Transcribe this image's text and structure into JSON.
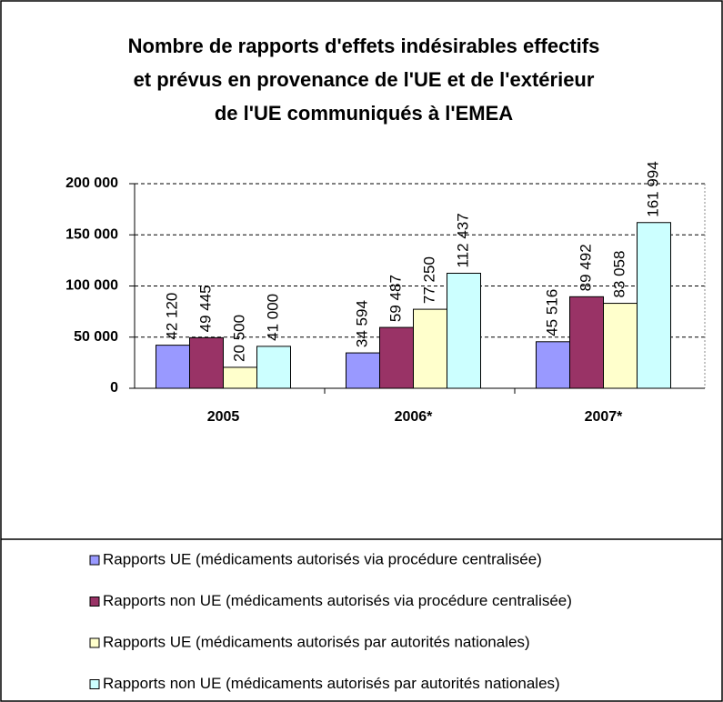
{
  "chart_data": {
    "type": "bar",
    "title": [
      "Nombre de rapports d'effets indésirables effectifs",
      "et prévus en provenance de l'UE et de l'extérieur",
      "de l'UE communiqués à l'EMEA"
    ],
    "categories": [
      "2005",
      "2006*",
      "2007*"
    ],
    "series": [
      {
        "name": "Rapports UE (médicaments autorisés via procédure centralisée)",
        "color": "#9999ff",
        "values": [
          42120,
          34594,
          45516
        ],
        "value_labels": [
          "42 120",
          "34 594",
          "45 516"
        ]
      },
      {
        "name": "Rapports non UE (médicaments autorisés via procédure centralisée)",
        "color": "#993366",
        "values": [
          49445,
          59487,
          89492
        ],
        "value_labels": [
          "49 445",
          "59 487",
          "89 492"
        ]
      },
      {
        "name": "Rapports UE (médicaments autorisés par autorités nationales)",
        "color": "#ffffcc",
        "values": [
          20500,
          77250,
          83058
        ],
        "value_labels": [
          "20 500",
          "77 250",
          "83 058"
        ]
      },
      {
        "name": "Rapports non UE (médicaments autorisés par autorités nationales)",
        "color": "#ccffff",
        "values": [
          41000,
          112437,
          161994
        ],
        "value_labels": [
          "41 000",
          "112 437",
          "161 994"
        ]
      }
    ],
    "ylim": [
      0,
      200000
    ],
    "yticks": [
      0,
      {
        "value": 50000,
        "label": "50 000"
      },
      {
        "value": 100000,
        "label": "100 000"
      },
      {
        "value": 150000,
        "label": "150 000"
      },
      {
        "value": 200000,
        "label": "200 000"
      }
    ],
    "grid": true,
    "legend": "bottom"
  }
}
